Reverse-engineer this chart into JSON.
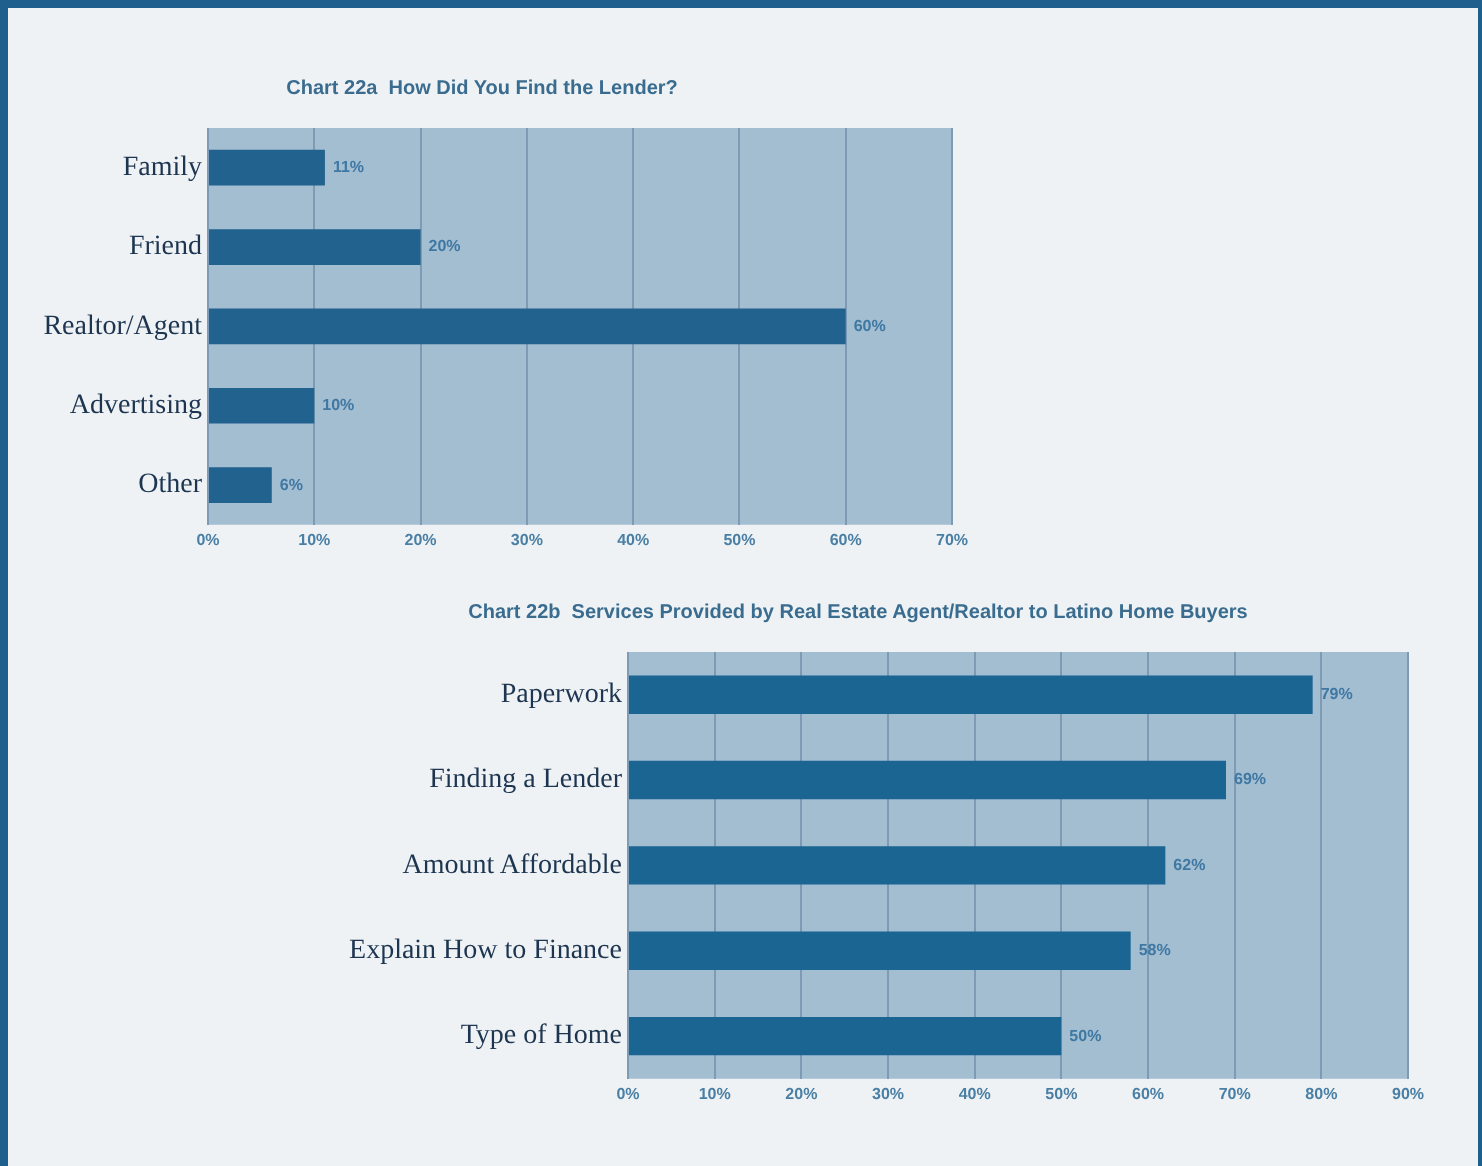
{
  "chart_data": [
    {
      "type": "bar",
      "orientation": "horizontal",
      "title": "Chart 22a  How Did You Find the Lender?",
      "categories": [
        "Family",
        "Friend",
        "Realtor/Agent",
        "Advertising",
        "Other"
      ],
      "values": [
        11,
        20,
        60,
        10,
        6
      ],
      "value_labels": [
        "11%",
        "20%",
        "60%",
        "10%",
        "6%"
      ],
      "color": "#22628e",
      "xlim": [
        0,
        70
      ],
      "xticks": [
        {
          "value": 0,
          "label": "0%"
        },
        {
          "value": 10,
          "label": "10%"
        },
        {
          "value": 20,
          "label": "20%"
        },
        {
          "value": 30,
          "label": "30%"
        },
        {
          "value": 40,
          "label": "40%"
        },
        {
          "value": 50,
          "label": "50%"
        },
        {
          "value": 60,
          "label": "60%"
        },
        {
          "value": 70,
          "label": "70%"
        }
      ],
      "grid": "x"
    },
    {
      "type": "bar",
      "orientation": "horizontal",
      "title": "Chart 22b  Services Provided by Real Estate Agent/Realtor to Latino Home Buyers",
      "categories": [
        "Paperwork",
        "Finding a Lender",
        "Amount Affordable",
        "Explain How to Finance",
        "Type of Home"
      ],
      "values": [
        79,
        69,
        62,
        58,
        50
      ],
      "value_labels": [
        "79%",
        "69%",
        "62%",
        "58%",
        "50%"
      ],
      "color": "#1a6592",
      "xlim": [
        0,
        90
      ],
      "xticks": [
        {
          "value": 0,
          "label": "0%"
        },
        {
          "value": 10,
          "label": "10%"
        },
        {
          "value": 20,
          "label": "20%"
        },
        {
          "value": 30,
          "label": "30%"
        },
        {
          "value": 40,
          "label": "40%"
        },
        {
          "value": 50,
          "label": "50%"
        },
        {
          "value": 60,
          "label": "60%"
        },
        {
          "value": 70,
          "label": "70%"
        },
        {
          "value": 80,
          "label": "80%"
        },
        {
          "value": 90,
          "label": "90%"
        }
      ],
      "grid": "x"
    }
  ]
}
